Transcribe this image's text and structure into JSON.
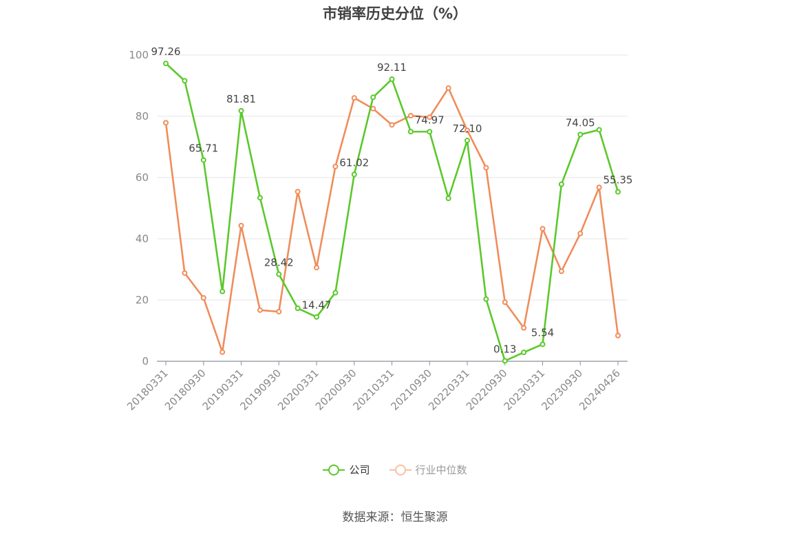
{
  "title": "市销率历史分位（%）",
  "source": "数据来源：恒生聚源",
  "chart_data": {
    "type": "line",
    "title": "市销率历史分位（%）",
    "xlabel": "",
    "ylabel": "",
    "ylim": [
      0,
      100
    ],
    "yticks": [
      0,
      20,
      40,
      60,
      80,
      100
    ],
    "grid": true,
    "legend_position": "bottom",
    "x": [
      "20180331",
      "20180630",
      "20180930",
      "20181231",
      "20190331",
      "20190630",
      "20190930",
      "20191231",
      "20200331",
      "20200630",
      "20200930",
      "20201231",
      "20210331",
      "20210630",
      "20210930",
      "20211231",
      "20220331",
      "20220630",
      "20220930",
      "20221231",
      "20230331",
      "20230630",
      "20230930",
      "20231231",
      "20240426"
    ],
    "xtick_labels": [
      "20180331",
      "20180930",
      "20190331",
      "20190930",
      "20200331",
      "20200930",
      "20210331",
      "20210930",
      "20220331",
      "20220930",
      "20230331",
      "20230930",
      "20240426"
    ],
    "series": [
      {
        "name": "公司",
        "color": "#5ac82a",
        "values": [
          97.26,
          91.6,
          65.71,
          22.8,
          81.81,
          53.4,
          28.42,
          17.3,
          14.47,
          22.4,
          61.02,
          86.2,
          92.11,
          75.0,
          74.97,
          53.2,
          72.1,
          20.3,
          0.13,
          2.9,
          5.54,
          57.8,
          74.05,
          75.6,
          55.35
        ],
        "labels": {
          "0": "97.26",
          "2": "65.71",
          "4": "81.81",
          "6": "28.42",
          "8": "14.47",
          "10": "61.02",
          "12": "92.11",
          "14": "74.97",
          "16": "72.10",
          "18": "0.13",
          "20": "5.54",
          "22": "74.05",
          "24": "55.35"
        }
      },
      {
        "name": "行业中位数",
        "color": "#f08c5a",
        "values": [
          77.9,
          28.8,
          20.7,
          3.0,
          44.3,
          16.7,
          16.2,
          55.4,
          30.6,
          63.6,
          86.0,
          82.5,
          77.2,
          80.2,
          79.7,
          89.2,
          75.4,
          63.2,
          19.3,
          10.9,
          43.3,
          29.4,
          41.7,
          56.8,
          8.4
        ]
      }
    ]
  },
  "legend": {
    "company": "公司",
    "industry": "行业中位数"
  }
}
